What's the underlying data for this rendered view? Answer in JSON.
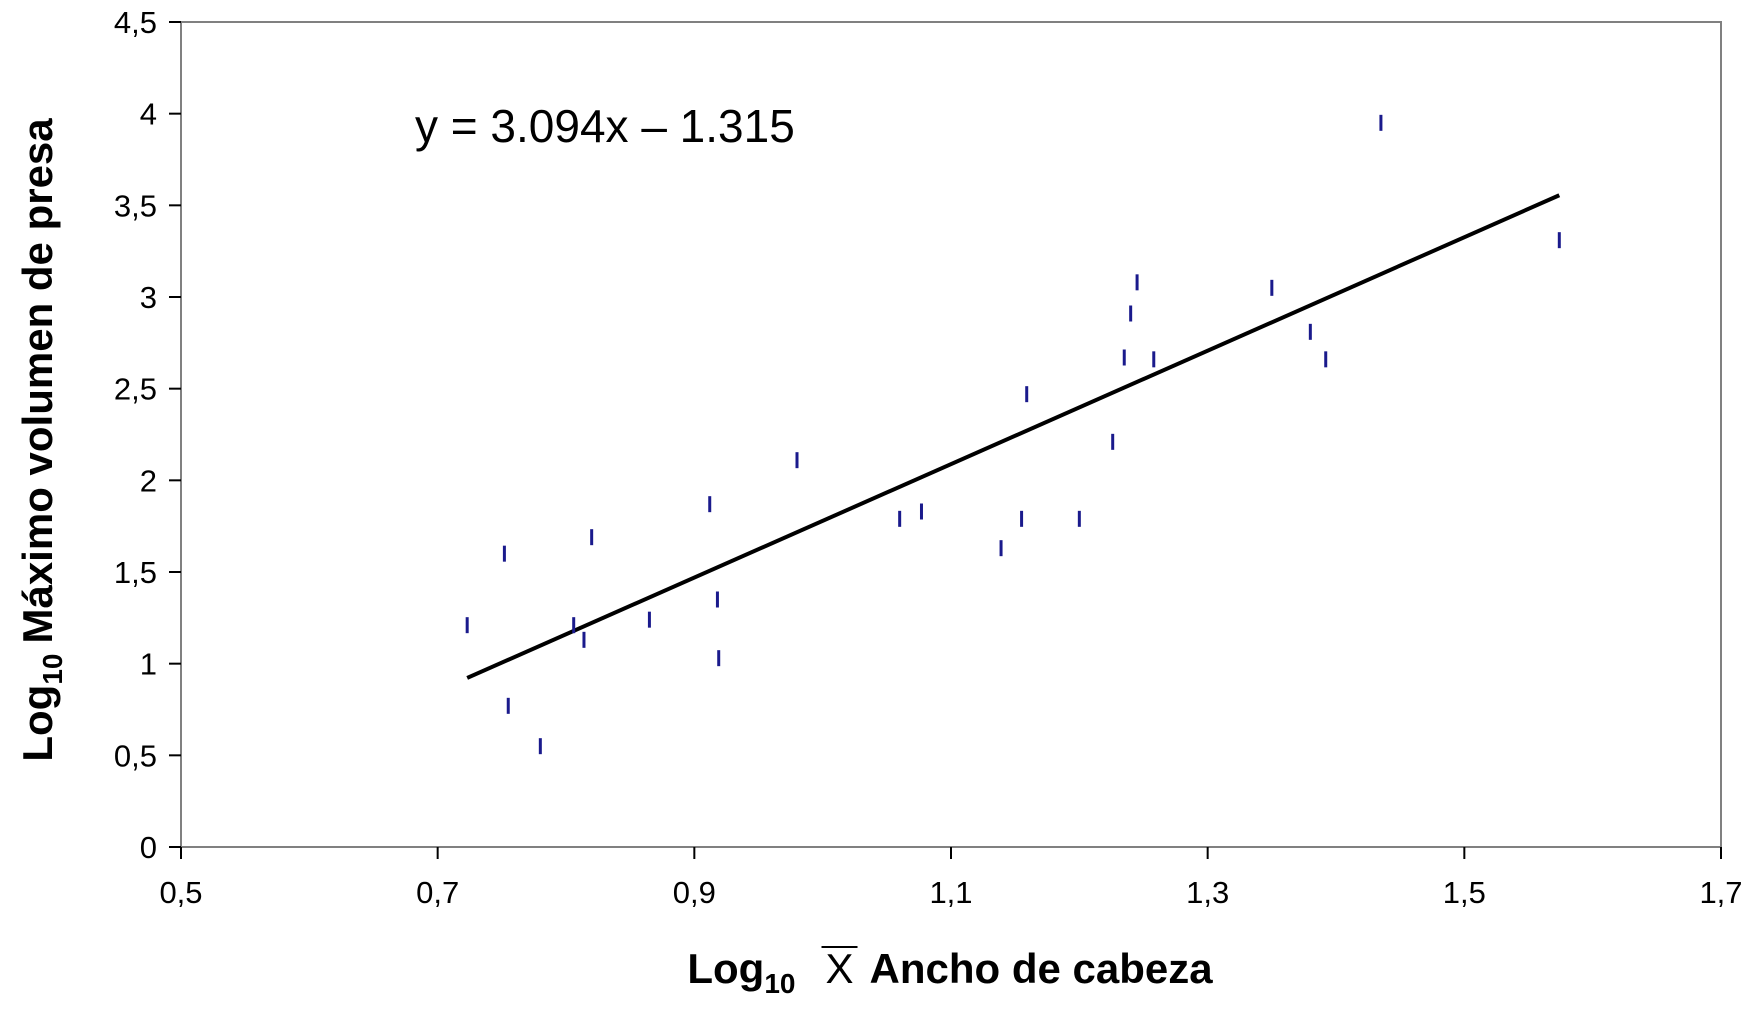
{
  "chart_data": {
    "type": "scatter",
    "title": "",
    "xlabel": {
      "prefix": "Log",
      "subscript": "10",
      "symbol": "X",
      "rest": "Ancho de cabeza"
    },
    "ylabel": {
      "prefix": "Log",
      "subscript": "10",
      "rest": "Máximo volumen de presa"
    },
    "xlim": [
      0.5,
      1.7
    ],
    "ylim": [
      0,
      4.5
    ],
    "x_ticks": [
      0.5,
      0.7,
      0.9,
      1.1,
      1.3,
      1.5,
      1.7
    ],
    "x_tick_labels": [
      "0,5",
      "0,7",
      "0,9",
      "1,1",
      "1,3",
      "1,5",
      "1,7"
    ],
    "y_ticks": [
      0,
      0.5,
      1,
      1.5,
      2,
      2.5,
      3,
      3.5,
      4,
      4.5
    ],
    "y_tick_labels": [
      "0",
      "0,5",
      "1",
      "1,5",
      "2",
      "2,5",
      "3",
      "3,5",
      "4",
      "4,5"
    ],
    "grid": false,
    "marker_color": "#1a1a8c",
    "line_color": "#000000",
    "equation": "y = 3.094x – 1.315",
    "trendline": {
      "slope": 3.094,
      "intercept": -1.315,
      "x_range": [
        0.723,
        1.574
      ]
    },
    "series": [
      {
        "x": [
          0.723,
          0.752,
          0.755,
          0.78,
          0.806,
          0.814,
          0.82,
          0.865,
          0.912,
          0.918,
          0.919,
          0.98,
          1.06,
          1.077,
          1.139,
          1.155,
          1.159,
          1.2,
          1.226,
          1.235,
          1.24,
          1.245,
          1.258,
          1.35,
          1.38,
          1.392,
          1.435,
          1.574
        ],
        "y": [
          1.21,
          1.6,
          0.77,
          0.55,
          1.21,
          1.13,
          1.69,
          1.24,
          1.87,
          1.35,
          1.03,
          2.11,
          1.79,
          1.83,
          1.63,
          1.79,
          2.47,
          1.79,
          2.21,
          2.67,
          2.91,
          3.08,
          2.66,
          3.05,
          2.81,
          2.66,
          3.95,
          3.31
        ]
      }
    ]
  }
}
